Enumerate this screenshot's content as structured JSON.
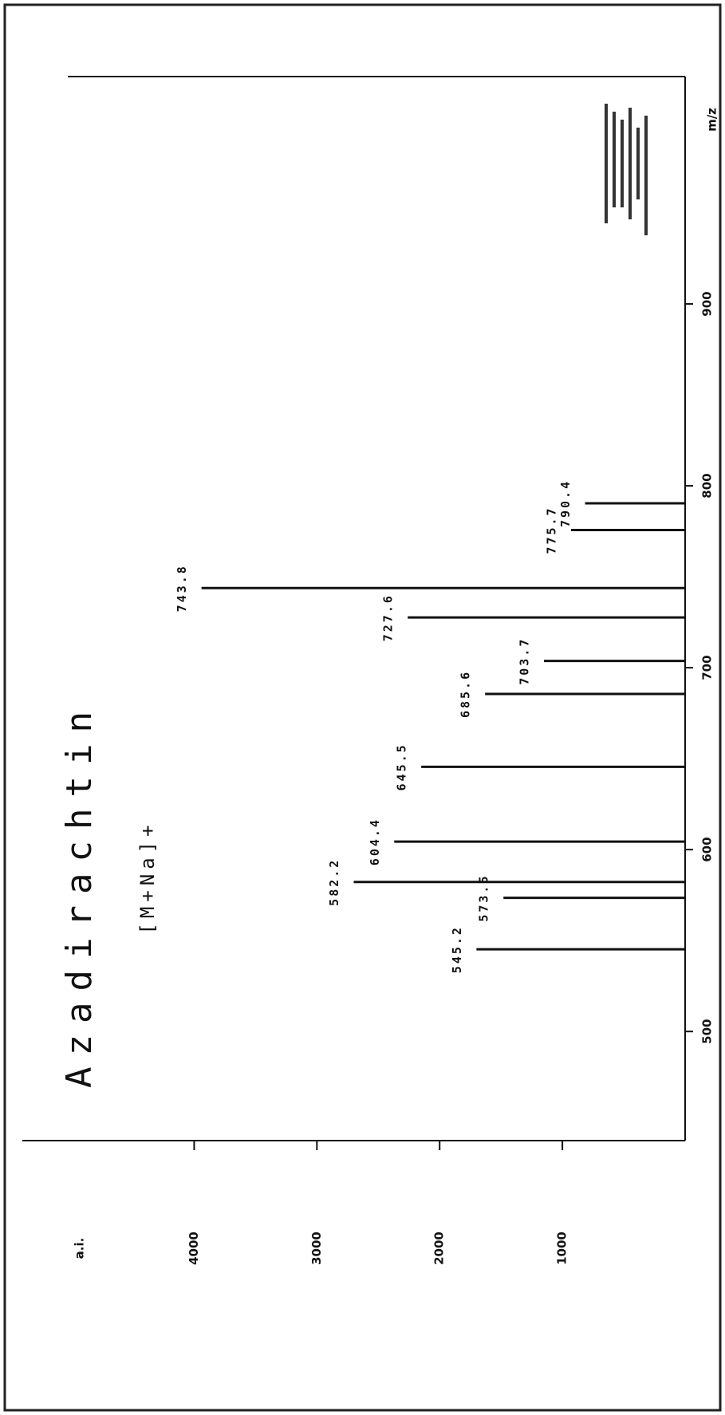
{
  "chart_data": {
    "type": "spectrum",
    "title": "Azadirachtin",
    "annotation": "[M+Na]+",
    "x_label": "m/z",
    "y_label": "a.i.",
    "x": [
      545.2,
      573.5,
      582.2,
      604.4,
      645.5,
      685.6,
      703.7,
      727.6,
      743.8,
      775.7,
      790.4
    ],
    "values": [
      1700,
      1480,
      2700,
      2370,
      2150,
      1630,
      1150,
      2260,
      3940,
      930,
      815
    ],
    "xlim": [
      440,
      1025
    ],
    "ylim": [
      0,
      5400
    ],
    "xticks": [
      500,
      600,
      700,
      800,
      900
    ],
    "yticks": [
      1000,
      2000,
      3000,
      4000
    ],
    "color": "#111111"
  }
}
